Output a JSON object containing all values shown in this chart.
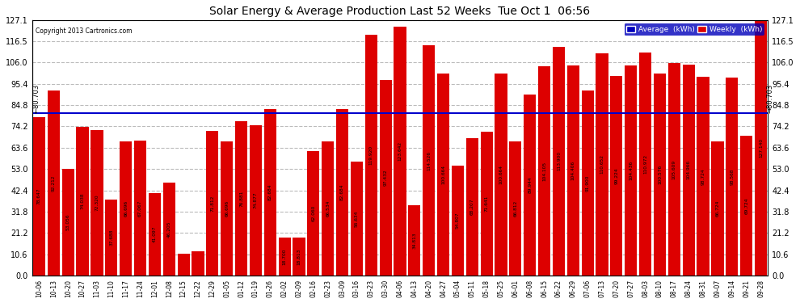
{
  "title": "Solar Energy & Average Production Last 52 Weeks  Tue Oct 1  06:56",
  "copyright": "Copyright 2013 Cartronics.com",
  "average_label": "Average  (kWh)",
  "weekly_label": "Weekly  (kWh)",
  "average_value": 80.703,
  "ylim": [
    0,
    127.1
  ],
  "yticks": [
    0.0,
    10.6,
    21.2,
    31.8,
    42.4,
    53.0,
    63.6,
    74.2,
    84.8,
    95.4,
    106.0,
    116.5,
    127.1
  ],
  "bar_color": "#dd0000",
  "avg_line_color": "#0000cc",
  "background_color": "#ffffff",
  "grid_color": "#bbbbbb",
  "categories": [
    "10-06",
    "10-13",
    "10-20",
    "10-27",
    "11-03",
    "11-10",
    "11-17",
    "11-24",
    "12-01",
    "12-08",
    "12-15",
    "12-22",
    "12-29",
    "01-05",
    "01-12",
    "01-19",
    "01-26",
    "02-02",
    "02-09",
    "02-16",
    "02-23",
    "03-09",
    "03-16",
    "03-23",
    "03-30",
    "04-06",
    "04-13",
    "04-20",
    "04-27",
    "05-04",
    "05-11",
    "05-18",
    "05-25",
    "06-01",
    "06-08",
    "06-15",
    "06-22",
    "06-29",
    "07-06",
    "07-13",
    "07-20",
    "07-27",
    "08-03",
    "08-10",
    "08-17",
    "08-24",
    "08-31",
    "09-07",
    "09-14",
    "09-21",
    "09-28"
  ],
  "values": [
    78.647,
    92.212,
    53.056,
    74.038,
    72.32,
    37.688,
    66.696,
    67.067,
    41.097,
    46.205,
    10.671,
    12.218,
    71.812,
    66.696,
    76.881,
    74.877,
    82.684,
    18.7,
    18.813,
    62.06,
    66.534,
    82.684,
    56.634,
    119.92,
    97.432,
    123.642,
    34.813,
    114.526,
    100.664,
    54.807,
    68.207,
    71.641,
    100.664,
    66.812,
    89.944,
    104.105,
    113.9,
    104.406,
    91.9,
    110.652,
    99.224,
    104.436,
    110.972,
    100.576,
    105.609,
    104.966,
    98.724,
    66.724,
    98.568,
    69.724,
    127.14
  ]
}
